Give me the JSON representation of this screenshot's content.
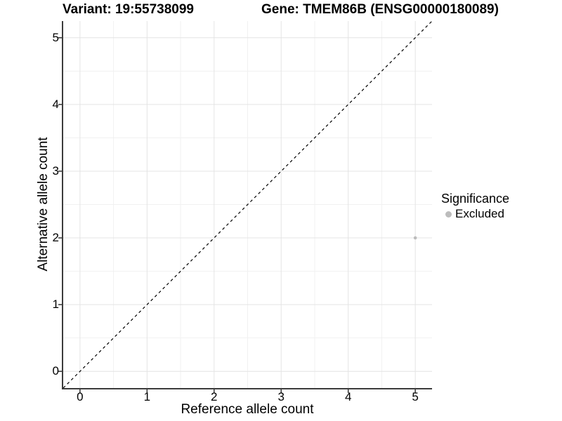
{
  "chart_data": {
    "type": "scatter",
    "title_left": "Variant: 19:55738099",
    "title_right": "Gene: TMEM86B (ENSG00000180089)",
    "xlabel": "Reference allele count",
    "ylabel": "Alternative allele count",
    "xlim": [
      -0.25,
      5.25
    ],
    "ylim": [
      -0.25,
      5.25
    ],
    "xticks": [
      0,
      1,
      2,
      3,
      4,
      5
    ],
    "yticks": [
      0,
      1,
      2,
      3,
      4,
      5
    ],
    "grid": {
      "major": true,
      "minor": true,
      "major_color": "#e4e4e4",
      "minor_color": "#f1f1f1"
    },
    "identity_line": {
      "slope": 1,
      "intercept": 0,
      "style": "dashed",
      "color": "#000000"
    },
    "axis": {
      "line_color": "#3c3c3c",
      "tick_color": "#333333",
      "tick_length": 5
    },
    "series": [
      {
        "name": "Excluded",
        "color": "#bcbcbc",
        "point_radius": 2.3,
        "points": [
          {
            "x": 5,
            "y": 2
          }
        ]
      }
    ],
    "legend": {
      "title": "Significance",
      "position": "right",
      "items": [
        {
          "label": "Excluded",
          "color": "#bcbcbc",
          "marker": "circle"
        }
      ]
    }
  }
}
